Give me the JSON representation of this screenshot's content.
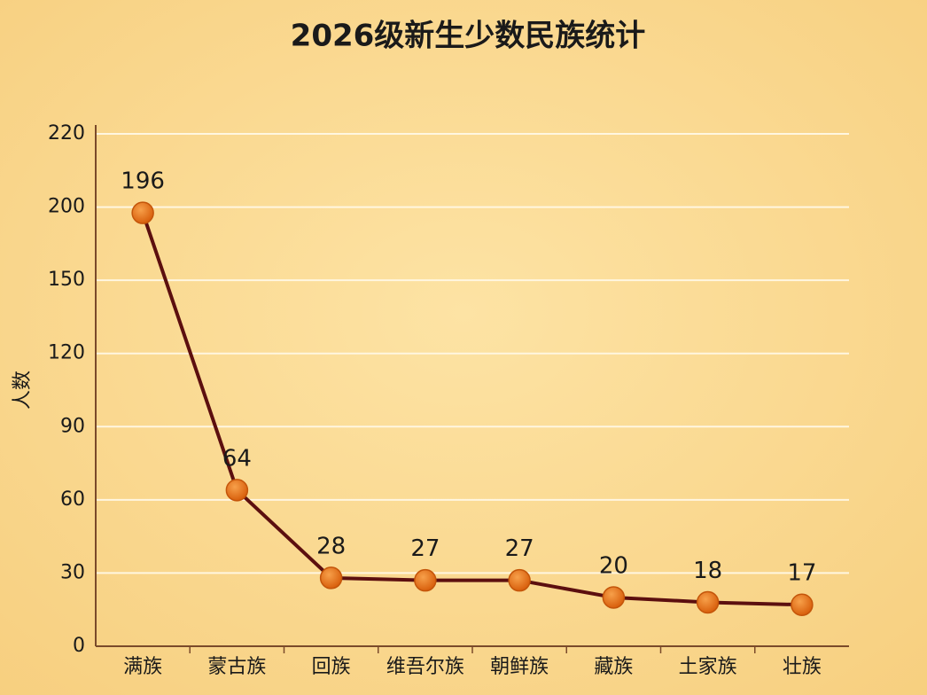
{
  "chart_data": {
    "type": "line",
    "title": "2026级新生少数民族统计",
    "y_label": "人数",
    "categories": [
      "满族",
      "蒙古族",
      "回族",
      "维吾尔族",
      "朝鲜族",
      "藏族",
      "土家族",
      "壮族"
    ],
    "values": [
      196,
      64,
      28,
      27,
      27,
      20,
      18,
      17
    ],
    "color": "#5c0f0f",
    "marker_color": "#e8761a",
    "ylim": [
      0,
      220
    ],
    "yticks": [
      0,
      30,
      60,
      90,
      120,
      150,
      200,
      220
    ],
    "grid": true
  }
}
